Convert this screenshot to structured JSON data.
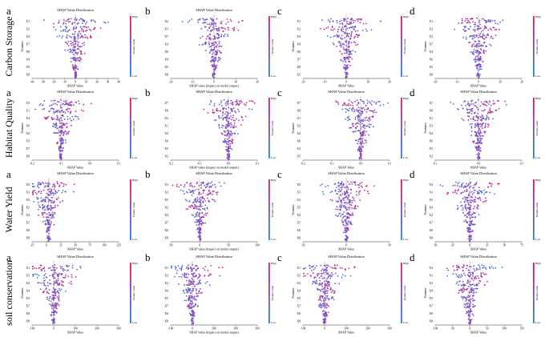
{
  "figure": {
    "row_labels": [
      "Carbon Storage",
      "Habitat Quality",
      "Water Yield",
      "soil conservation"
    ],
    "column_letters": [
      "a",
      "b",
      "c",
      "d"
    ],
    "colorbar": {
      "high": "High",
      "low": "Low",
      "label": "Feature value"
    },
    "colors": {
      "low": "#1e88e5",
      "high": "#ff0d57"
    }
  },
  "chart_data": [
    {
      "type": "scatter",
      "row": 0,
      "col": 0,
      "title": "SHAP Value Distribution",
      "xlabel": "SHAP Value",
      "ylabel": "Features",
      "features": [
        "X1",
        "X2",
        "X3",
        "X7",
        "X6",
        "X4",
        "X5",
        "X8"
      ],
      "xlim": [
        -40,
        40
      ],
      "zero": 0,
      "xticks": [
        "-40",
        "-30",
        "-20",
        "-10",
        "0",
        "10",
        "20",
        "30",
        "40"
      ]
    },
    {
      "type": "scatter",
      "row": 0,
      "col": 1,
      "title": "SHAP Value Distribution",
      "xlabel": "SHAP value (impact on model output)",
      "ylabel": "",
      "features": [
        "X2",
        "X1",
        "X7",
        "X3",
        "X6",
        "X4",
        "X5",
        "X8"
      ],
      "xlim": [
        -20,
        20
      ],
      "zero": 0,
      "xticks": [
        "-20",
        "-10",
        "0",
        "10",
        "20"
      ]
    },
    {
      "type": "scatter",
      "row": 0,
      "col": 2,
      "title": "",
      "xlabel": "SHAP Value",
      "ylabel": "Features",
      "features": [
        "X1",
        "X2",
        "X3",
        "X4",
        "X6",
        "X7",
        "X8",
        "X5"
      ],
      "xlim": [
        -20,
        20
      ],
      "zero": 0,
      "xticks": [
        "-20",
        "-10",
        "0",
        "10",
        "20"
      ]
    },
    {
      "type": "scatter",
      "row": 0,
      "col": 3,
      "title": "",
      "xlabel": "SHAP Value",
      "ylabel": "Features",
      "features": [
        "X1",
        "X2",
        "X3",
        "X7",
        "X4",
        "X6",
        "X5",
        "X8"
      ],
      "xlim": [
        -20,
        20
      ],
      "zero": 0,
      "xticks": [
        "-20",
        "-10",
        "0",
        "10",
        "20"
      ]
    },
    {
      "type": "scatter",
      "row": 1,
      "col": 0,
      "title": "SHAP Value Distribution",
      "xlabel": "SHAP Value",
      "ylabel": "Features",
      "features": [
        "X3",
        "X1",
        "X4",
        "X6",
        "X2",
        "X5",
        "X7",
        "X8"
      ],
      "xlim": [
        -0.2,
        0.1
      ],
      "zero": -0.1,
      "xticks": [
        "-0.2",
        "-0.1",
        "0.0",
        "0.1"
      ]
    },
    {
      "type": "scatter",
      "row": 1,
      "col": 1,
      "title": "SHAP Value Distribution",
      "xlabel": "SHAP value (impact on model output)",
      "ylabel": "",
      "features": [
        "X7",
        "X8",
        "X3",
        "X1",
        "X4",
        "X6",
        "X5",
        "X2"
      ],
      "xlim": [
        -0.2,
        0.1
      ],
      "zero": 0,
      "xticks": [
        "-0.2",
        "-0.1",
        "0.0",
        "0.1"
      ]
    },
    {
      "type": "scatter",
      "row": 1,
      "col": 2,
      "title": "SHAP Value Distribution",
      "xlabel": "SHAP Value",
      "ylabel": "Features",
      "features": [
        "X7",
        "X8",
        "X1",
        "X3",
        "X4",
        "X6",
        "X2",
        "X5"
      ],
      "xlim": [
        -0.2,
        0.1
      ],
      "zero": 0,
      "xticks": [
        "-0.2",
        "-0.1",
        "0.0",
        "0.1"
      ]
    },
    {
      "type": "scatter",
      "row": 1,
      "col": 3,
      "title": "SHAP Value Distribution",
      "xlabel": "SHAP Value",
      "ylabel": "Features",
      "features": [
        "X7",
        "X8",
        "X1",
        "X3",
        "X4",
        "X6",
        "X5",
        "X2"
      ],
      "xlim": [
        -0.1,
        0.1
      ],
      "zero": 0,
      "xticks": [
        "-0.1",
        "0.0",
        "0.1"
      ]
    },
    {
      "type": "scatter",
      "row": 2,
      "col": 0,
      "title": "SHAP Value Distribution",
      "xlabel": "SHAP Value",
      "ylabel": "Features",
      "features": [
        "X3",
        "X1",
        "X5",
        "X2",
        "X4",
        "X7",
        "X6",
        "X8"
      ],
      "xlim": [
        -30,
        125
      ],
      "zero": 0,
      "xticks": [
        "-25",
        "0",
        "25",
        "50",
        "75",
        "100",
        "125"
      ]
    },
    {
      "type": "scatter",
      "row": 2,
      "col": 1,
      "title": "SHAP Value Distribution",
      "xlabel": "SHAP value (impact on model output)",
      "ylabel": "",
      "features": [
        "X1",
        "X3",
        "X5",
        "X2",
        "X4",
        "X7",
        "X6",
        "X8"
      ],
      "xlim": [
        -50,
        100
      ],
      "zero": 0,
      "xticks": [
        "-50",
        "0",
        "50",
        "100"
      ]
    },
    {
      "type": "scatter",
      "row": 2,
      "col": 2,
      "title": "SHAP Value Distribution",
      "xlabel": "SHAP Value",
      "ylabel": "Features",
      "features": [
        "X3",
        "X1",
        "X2",
        "X5",
        "X4",
        "X7",
        "X6",
        "X8"
      ],
      "xlim": [
        -50,
        50
      ],
      "zero": 0,
      "xticks": [
        "-50",
        "0",
        "50"
      ]
    },
    {
      "type": "scatter",
      "row": 2,
      "col": 3,
      "title": "SHAP Value Distribution",
      "xlabel": "SHAP Value",
      "ylabel": "Features",
      "features": [
        "X3",
        "X1",
        "X5",
        "X4",
        "X2",
        "X7",
        "X6",
        "X8"
      ],
      "xlim": [
        -50,
        75
      ],
      "zero": 0,
      "xticks": [
        "-50",
        "-25",
        "0",
        "25",
        "50",
        "75"
      ]
    },
    {
      "type": "scatter",
      "row": 3,
      "col": 0,
      "title": "SHAP Value Distribution",
      "xlabel": "SHAP Value",
      "ylabel": "Features",
      "features": [
        "X1",
        "X3",
        "X2",
        "X4",
        "X5",
        "X7",
        "X6",
        "X8"
      ],
      "xlim": [
        -100,
        300
      ],
      "zero": 0,
      "xticks": [
        "-100",
        "0",
        "100",
        "200",
        "300"
      ]
    },
    {
      "type": "scatter",
      "row": 3,
      "col": 1,
      "title": "SHAP Value Distribution",
      "xlabel": "SHAP value (impact on model output)",
      "ylabel": "",
      "features": [
        "X1",
        "X3",
        "X2",
        "X4",
        "X5",
        "X7",
        "X6",
        "X8"
      ],
      "xlim": [
        -100,
        300
      ],
      "zero": 0,
      "xticks": [
        "-100",
        "0",
        "100",
        "200",
        "300"
      ]
    },
    {
      "type": "scatter",
      "row": 3,
      "col": 2,
      "title": "SHAP Value Distribution",
      "xlabel": "SHAP Value",
      "ylabel": "Features",
      "features": [
        "X1",
        "X3",
        "X2",
        "X4",
        "X5",
        "X7",
        "X6",
        "X8"
      ],
      "xlim": [
        -100,
        300
      ],
      "zero": 0,
      "xticks": [
        "-100",
        "0",
        "100",
        "200",
        "300"
      ]
    },
    {
      "type": "scatter",
      "row": 3,
      "col": 3,
      "title": "SHAP Value Distribution",
      "xlabel": "SHAP Value",
      "ylabel": "Features",
      "features": [
        "X3",
        "X1",
        "X2",
        "X4",
        "X5",
        "X7",
        "X6",
        "X8"
      ],
      "xlim": [
        -100,
        150
      ],
      "zero": 0,
      "xticks": [
        "-100",
        "-50",
        "0",
        "50",
        "100",
        "150"
      ]
    }
  ]
}
